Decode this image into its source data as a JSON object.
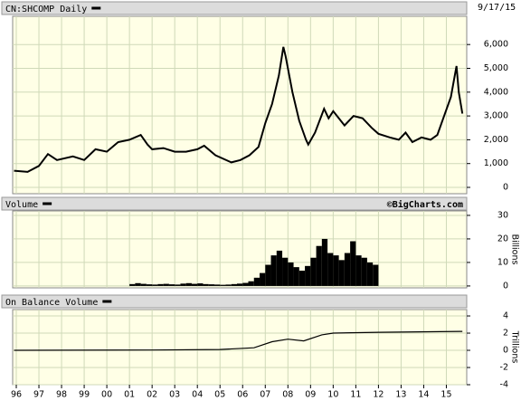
{
  "chart_data": [
    {
      "type": "line",
      "title": "CN:SHCOMP Daily",
      "annotation": "9/17/15",
      "color": "#000000",
      "x": [
        1995.9,
        1996.5,
        1997.0,
        1997.4,
        1997.8,
        1998.5,
        1999.0,
        1999.5,
        2000.0,
        2000.5,
        2001.0,
        2001.5,
        2001.8,
        2002.0,
        2002.5,
        2003.0,
        2003.5,
        2004.0,
        2004.3,
        2004.8,
        2005.5,
        2005.9,
        2006.3,
        2006.7,
        2007.0,
        2007.3,
        2007.6,
        2007.8,
        2007.9,
        2008.2,
        2008.5,
        2008.8,
        2008.9,
        2009.2,
        2009.6,
        2009.8,
        2010.0,
        2010.5,
        2010.9,
        2011.3,
        2011.7,
        2012.0,
        2012.5,
        2012.9,
        2013.2,
        2013.5,
        2013.9,
        2014.3,
        2014.6,
        2014.9,
        2015.2,
        2015.45,
        2015.55,
        2015.71
      ],
      "values": [
        700,
        650,
        900,
        1400,
        1150,
        1300,
        1150,
        1600,
        1500,
        1900,
        2000,
        2200,
        1800,
        1600,
        1650,
        1500,
        1500,
        1600,
        1750,
        1350,
        1050,
        1150,
        1350,
        1700,
        2700,
        3500,
        4700,
        5900,
        5500,
        4000,
        2800,
        2000,
        1800,
        2300,
        3300,
        2900,
        3200,
        2600,
        3000,
        2900,
        2500,
        2250,
        2100,
        2000,
        2300,
        1900,
        2100,
        2000,
        2200,
        3000,
        3800,
        5100,
        4000,
        3100
      ],
      "ylim": [
        -266,
        7186
      ],
      "yticks": [
        0,
        {
          "value": 1000,
          "label": "1,000"
        },
        {
          "value": 2000,
          "label": "2,000"
        },
        {
          "value": 3000,
          "label": "3,000"
        },
        {
          "value": 4000,
          "label": "4,000"
        },
        {
          "value": 5000,
          "label": "5,000"
        },
        {
          "value": 6000,
          "label": "6,000"
        }
      ],
      "grid": true
    },
    {
      "type": "bar",
      "title": "Volume",
      "annotation": "©BigCharts.com",
      "y_label": "Billions",
      "color": "#000000",
      "bar_width": 0.25,
      "x": [
        2001.0,
        2001.25,
        2001.5,
        2001.75,
        2002.0,
        2002.25,
        2002.5,
        2002.75,
        2003.0,
        2003.25,
        2003.5,
        2003.75,
        2004.0,
        2004.25,
        2004.5,
        2004.75,
        2005.0,
        2005.25,
        2005.5,
        2005.75,
        2006.0,
        2006.25,
        2006.5,
        2006.75,
        2007.0,
        2007.25,
        2007.5,
        2007.75,
        2008.0,
        2008.25,
        2008.5,
        2008.75,
        2009.0,
        2009.25,
        2009.5,
        2009.75,
        2010.0,
        2010.25,
        2010.5,
        2010.75,
        2011.0,
        2011.25,
        2011.5,
        2011.75
      ],
      "values": [
        0.8,
        1.2,
        0.9,
        0.7,
        0.6,
        0.8,
        0.9,
        0.7,
        0.6,
        1.0,
        1.2,
        0.9,
        1.1,
        0.8,
        0.7,
        0.6,
        0.5,
        0.6,
        0.8,
        1.0,
        1.3,
        2.0,
        3.5,
        5.5,
        9,
        13,
        15,
        12,
        10,
        8,
        6.5,
        8.5,
        12,
        17,
        20,
        14,
        13,
        11,
        14,
        19,
        13,
        12,
        10,
        9
      ],
      "ylim": [
        -0.8,
        31.9
      ],
      "yticks": [
        0,
        10,
        20,
        30
      ],
      "grid": true
    },
    {
      "type": "line",
      "title": "On Balance Volume",
      "y_label": "Trillions",
      "color": "#000000",
      "x": [
        1995.9,
        2002.0,
        2005.0,
        2006.5,
        2007.3,
        2008.0,
        2008.7,
        2009.5,
        2010.0,
        2012.0,
        2015.71
      ],
      "values": [
        0,
        0.03,
        0.1,
        0.3,
        1.0,
        1.3,
        1.1,
        1.8,
        2.0,
        2.1,
        2.2
      ],
      "ylim": [
        -4,
        4.74
      ],
      "yticks": [
        -4,
        -2,
        0,
        2,
        4
      ],
      "grid": true,
      "xlim": [
        1995.84,
        2015.9
      ],
      "xticks": [
        {
          "value": 1996,
          "label": "96"
        },
        {
          "value": 1997,
          "label": "97"
        },
        {
          "value": 1998,
          "label": "98"
        },
        {
          "value": 1999,
          "label": "99"
        },
        {
          "value": 2000,
          "label": "00"
        },
        {
          "value": 2001,
          "label": "01"
        },
        {
          "value": 2002,
          "label": "02"
        },
        {
          "value": 2003,
          "label": "03"
        },
        {
          "value": 2004,
          "label": "04"
        },
        {
          "value": 2005,
          "label": "05"
        },
        {
          "value": 2006,
          "label": "06"
        },
        {
          "value": 2007,
          "label": "07"
        },
        {
          "value": 2008,
          "label": "08"
        },
        {
          "value": 2009,
          "label": "09"
        },
        {
          "value": 2010,
          "label": "10"
        },
        {
          "value": 2011,
          "label": "11"
        },
        {
          "value": 2012,
          "label": "12"
        },
        {
          "value": 2013,
          "label": "13"
        },
        {
          "value": 2014,
          "label": "14"
        },
        {
          "value": 2015,
          "label": "15"
        }
      ]
    }
  ]
}
